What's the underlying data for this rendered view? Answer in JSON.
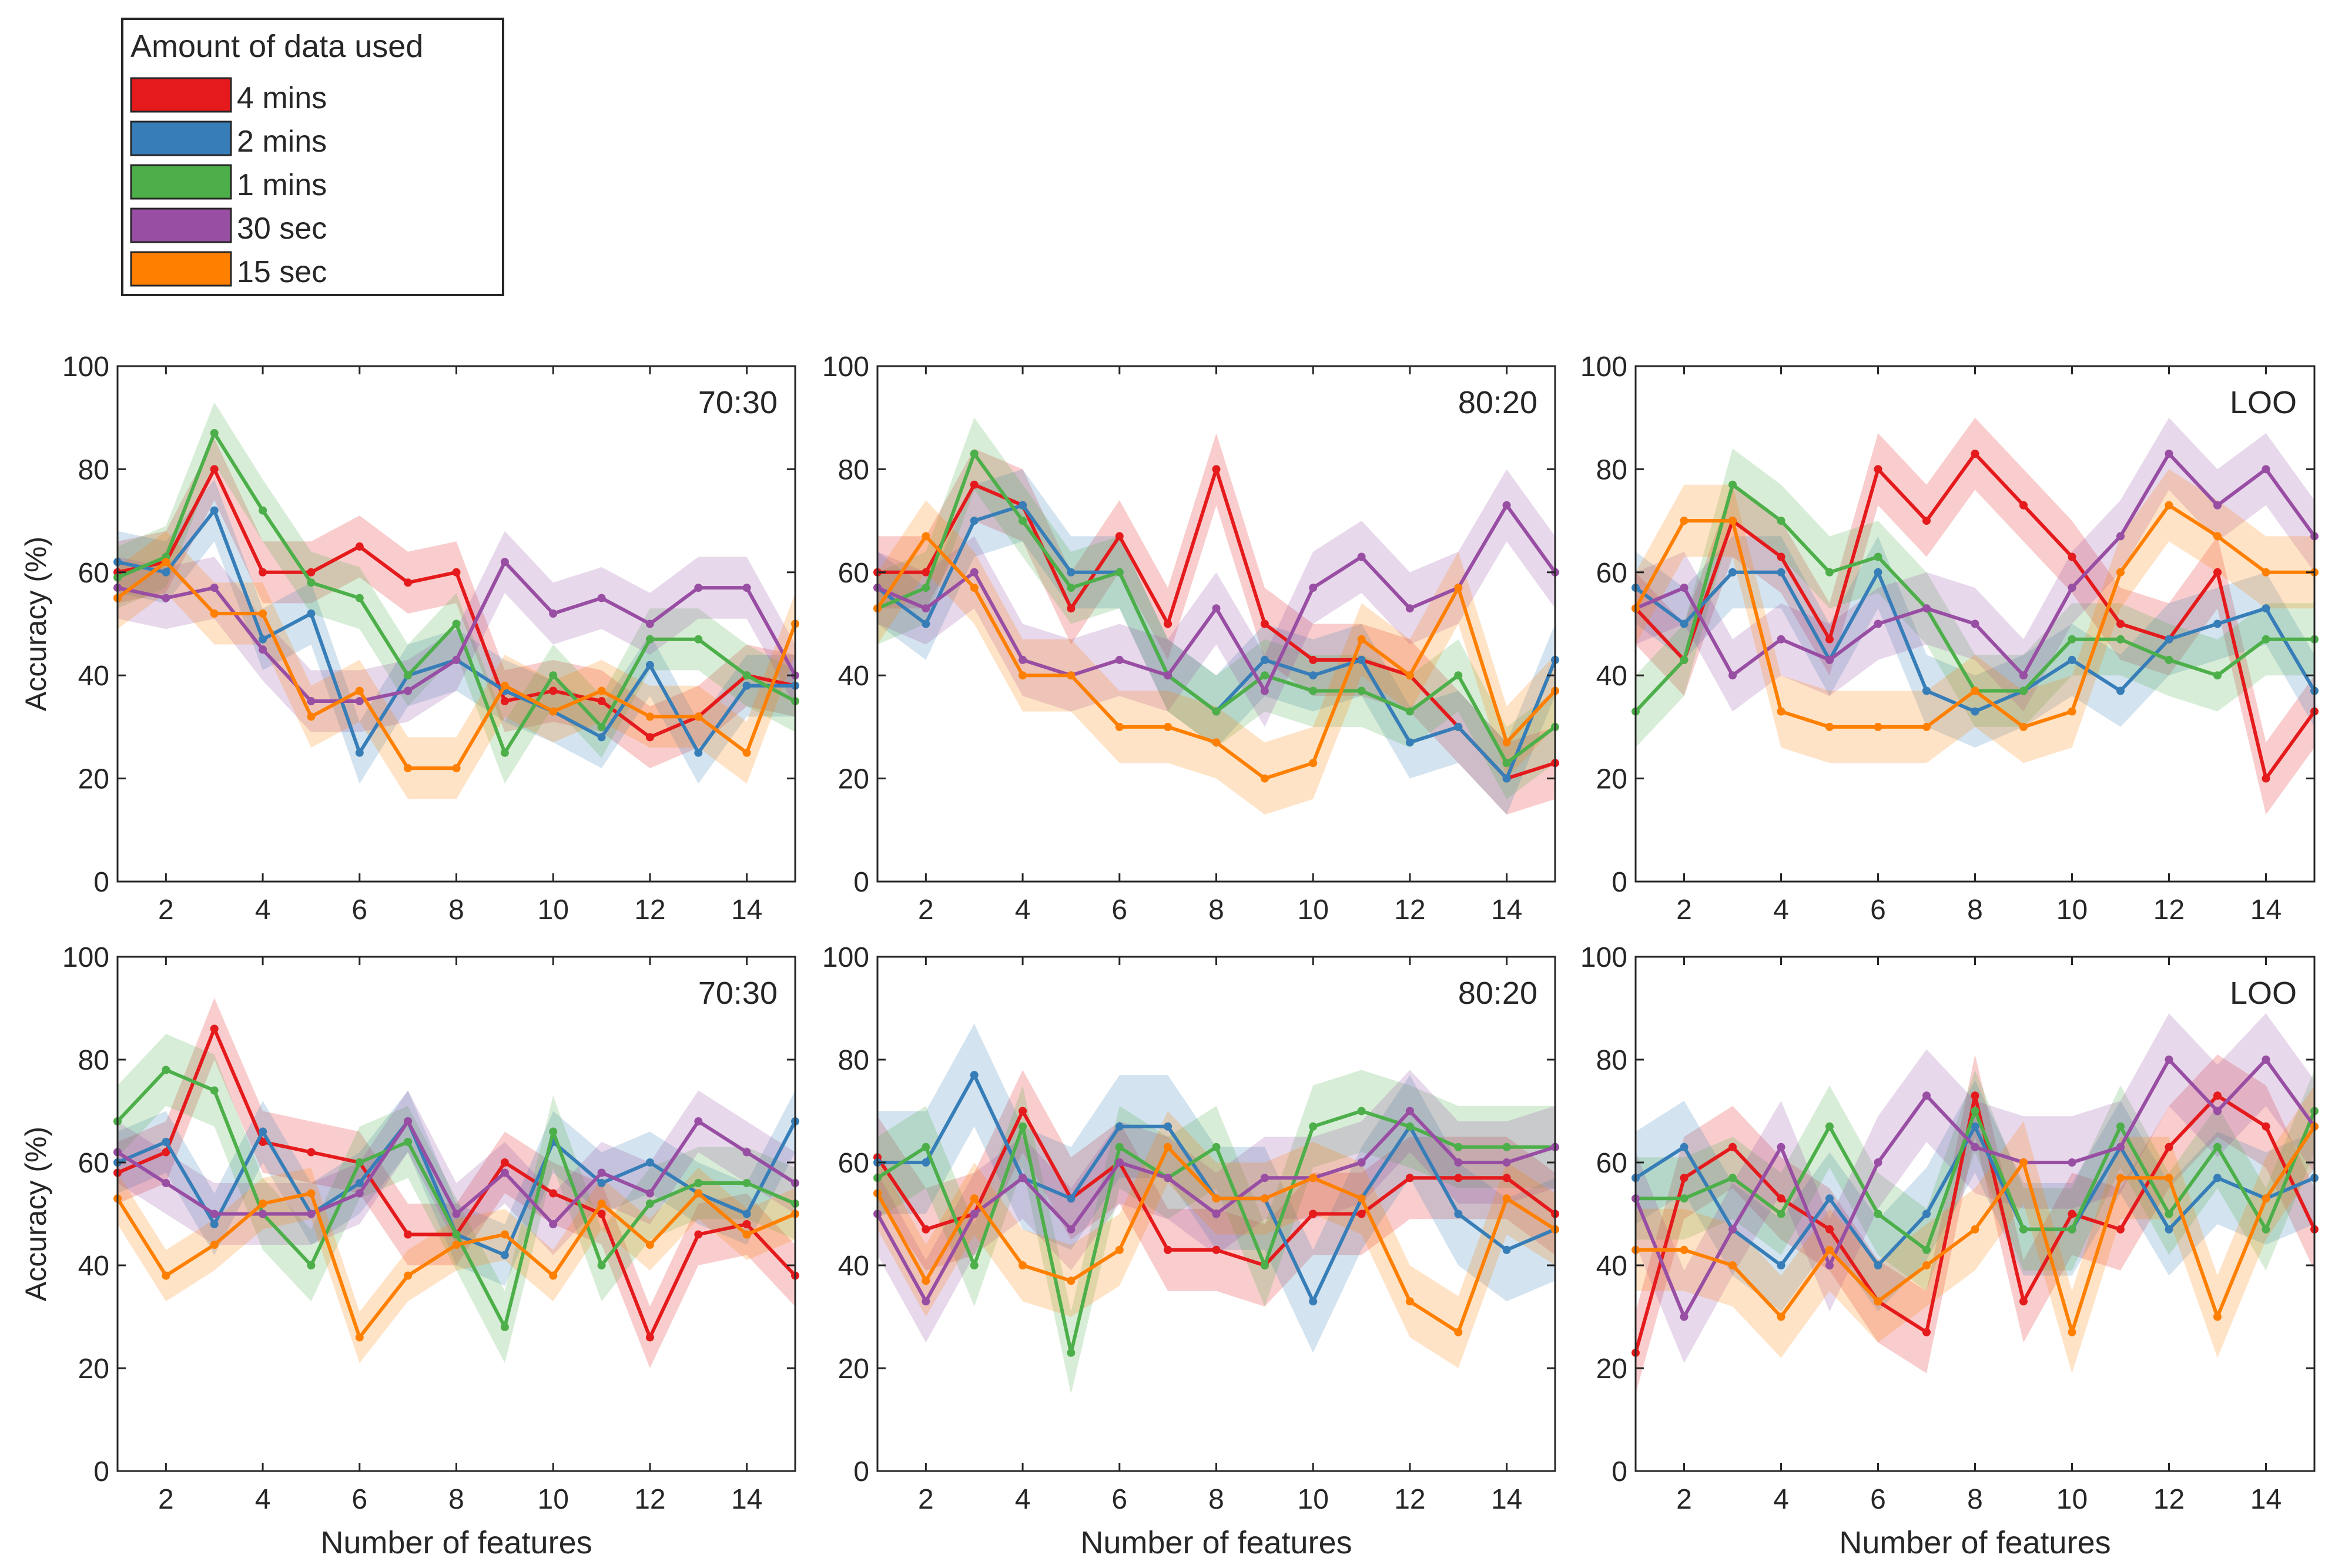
{
  "legend": {
    "title": "Amount of data used",
    "items": [
      {
        "label": "4 mins",
        "color": "#e41a1c"
      },
      {
        "label": "2 mins",
        "color": "#377eb8"
      },
      {
        "label": "1 mins",
        "color": "#4daf4a"
      },
      {
        "label": "30 sec",
        "color": "#984ea3"
      },
      {
        "label": "15 sec",
        "color": "#ff7f00"
      }
    ]
  },
  "chart_data": [
    {
      "type": "line",
      "title": "70:30",
      "xlabel": "",
      "ylabel": "Accuracy (%)",
      "xlim": [
        1,
        15
      ],
      "ylim": [
        0,
        100
      ],
      "xticks": [
        2,
        4,
        6,
        8,
        10,
        12,
        14
      ],
      "yticks": [
        0,
        20,
        40,
        60,
        80,
        100
      ],
      "x": [
        1,
        2,
        3,
        4,
        5,
        6,
        7,
        8,
        9,
        10,
        11,
        12,
        13,
        14,
        15
      ],
      "series": [
        {
          "name": "4 mins",
          "values": [
            60,
            62,
            80,
            60,
            60,
            65,
            58,
            60,
            35,
            37,
            35,
            28,
            32,
            40,
            38
          ],
          "band": 6
        },
        {
          "name": "2 mins",
          "values": [
            62,
            60,
            72,
            47,
            52,
            25,
            40,
            43,
            37,
            33,
            28,
            42,
            25,
            38,
            38
          ],
          "band": 6
        },
        {
          "name": "1 mins",
          "values": [
            59,
            63,
            87,
            72,
            58,
            55,
            40,
            50,
            25,
            40,
            30,
            47,
            47,
            40,
            35
          ],
          "band": 6
        },
        {
          "name": "30 sec",
          "values": [
            57,
            55,
            57,
            45,
            35,
            35,
            37,
            43,
            62,
            52,
            55,
            50,
            57,
            57,
            40
          ],
          "band": 6
        },
        {
          "name": "15 sec",
          "values": [
            55,
            62,
            52,
            52,
            32,
            37,
            22,
            22,
            38,
            33,
            37,
            32,
            32,
            25,
            50
          ],
          "band": 6
        }
      ]
    },
    {
      "type": "line",
      "title": "80:20",
      "xlabel": "",
      "ylabel": "",
      "xlim": [
        1,
        15
      ],
      "ylim": [
        0,
        100
      ],
      "xticks": [
        2,
        4,
        6,
        8,
        10,
        12,
        14
      ],
      "yticks": [
        0,
        20,
        40,
        60,
        80,
        100
      ],
      "x": [
        1,
        2,
        3,
        4,
        5,
        6,
        7,
        8,
        9,
        10,
        11,
        12,
        13,
        14,
        15
      ],
      "series": [
        {
          "name": "4 mins",
          "values": [
            60,
            60,
            77,
            73,
            53,
            67,
            50,
            80,
            50,
            43,
            43,
            40,
            30,
            20,
            23
          ],
          "band": 7
        },
        {
          "name": "2 mins",
          "values": [
            57,
            50,
            70,
            73,
            60,
            60,
            40,
            33,
            43,
            40,
            43,
            27,
            30,
            20,
            43
          ],
          "band": 7
        },
        {
          "name": "1 mins",
          "values": [
            53,
            57,
            83,
            70,
            57,
            60,
            40,
            33,
            40,
            37,
            37,
            33,
            40,
            23,
            30
          ],
          "band": 7
        },
        {
          "name": "30 sec",
          "values": [
            57,
            53,
            60,
            43,
            40,
            43,
            40,
            53,
            37,
            57,
            63,
            53,
            57,
            73,
            60
          ],
          "band": 7
        },
        {
          "name": "15 sec",
          "values": [
            53,
            67,
            57,
            40,
            40,
            30,
            30,
            27,
            20,
            23,
            47,
            40,
            57,
            27,
            37
          ],
          "band": 7
        }
      ]
    },
    {
      "type": "line",
      "title": "LOO",
      "xlabel": "",
      "ylabel": "",
      "xlim": [
        1,
        15
      ],
      "ylim": [
        0,
        100
      ],
      "xticks": [
        2,
        4,
        6,
        8,
        10,
        12,
        14
      ],
      "yticks": [
        0,
        20,
        40,
        60,
        80,
        100
      ],
      "x": [
        1,
        2,
        3,
        4,
        5,
        6,
        7,
        8,
        9,
        10,
        11,
        12,
        13,
        14,
        15
      ],
      "series": [
        {
          "name": "4 mins",
          "values": [
            53,
            43,
            70,
            63,
            47,
            80,
            70,
            83,
            73,
            63,
            50,
            47,
            60,
            20,
            33
          ],
          "band": 7
        },
        {
          "name": "2 mins",
          "values": [
            57,
            50,
            60,
            60,
            43,
            60,
            37,
            33,
            37,
            43,
            37,
            47,
            50,
            53,
            37
          ],
          "band": 7
        },
        {
          "name": "1 mins",
          "values": [
            33,
            43,
            77,
            70,
            60,
            63,
            53,
            37,
            37,
            47,
            47,
            43,
            40,
            47,
            47
          ],
          "band": 7
        },
        {
          "name": "30 sec",
          "values": [
            53,
            57,
            40,
            47,
            43,
            50,
            53,
            50,
            40,
            57,
            67,
            83,
            73,
            80,
            67
          ],
          "band": 7
        },
        {
          "name": "15 sec",
          "values": [
            53,
            70,
            70,
            33,
            30,
            30,
            30,
            37,
            30,
            33,
            60,
            73,
            67,
            60,
            60
          ],
          "band": 7
        }
      ]
    },
    {
      "type": "line",
      "title": "70:30",
      "xlabel": "Number of features",
      "ylabel": "Accuracy (%)",
      "xlim": [
        1,
        15
      ],
      "ylim": [
        0,
        100
      ],
      "xticks": [
        2,
        4,
        6,
        8,
        10,
        12,
        14
      ],
      "yticks": [
        0,
        20,
        40,
        60,
        80,
        100
      ],
      "x": [
        1,
        2,
        3,
        4,
        5,
        6,
        7,
        8,
        9,
        10,
        11,
        12,
        13,
        14,
        15
      ],
      "series": [
        {
          "name": "4 mins",
          "values": [
            58,
            62,
            86,
            64,
            62,
            60,
            46,
            46,
            60,
            54,
            50,
            26,
            46,
            48,
            38
          ],
          "band": 6
        },
        {
          "name": "2 mins",
          "values": [
            60,
            64,
            48,
            66,
            50,
            56,
            68,
            46,
            42,
            64,
            56,
            60,
            54,
            50,
            68
          ],
          "band": 6
        },
        {
          "name": "1 mins",
          "values": [
            68,
            78,
            74,
            50,
            40,
            60,
            64,
            46,
            28,
            66,
            40,
            52,
            56,
            56,
            52
          ],
          "band": 7
        },
        {
          "name": "30 sec",
          "values": [
            62,
            56,
            50,
            50,
            50,
            54,
            68,
            50,
            58,
            48,
            58,
            54,
            68,
            62,
            56
          ],
          "band": 6
        },
        {
          "name": "15 sec",
          "values": [
            53,
            38,
            44,
            52,
            54,
            26,
            38,
            44,
            46,
            38,
            52,
            44,
            54,
            46,
            50
          ],
          "band": 5
        }
      ]
    },
    {
      "type": "line",
      "title": "80:20",
      "xlabel": "Number of features",
      "ylabel": "",
      "xlim": [
        1,
        15
      ],
      "ylim": [
        0,
        100
      ],
      "xticks": [
        2,
        4,
        6,
        8,
        10,
        12,
        14
      ],
      "yticks": [
        0,
        20,
        40,
        60,
        80,
        100
      ],
      "x": [
        1,
        2,
        3,
        4,
        5,
        6,
        7,
        8,
        9,
        10,
        11,
        12,
        13,
        14,
        15
      ],
      "series": [
        {
          "name": "4 mins",
          "values": [
            61,
            47,
            50,
            70,
            53,
            60,
            43,
            43,
            40,
            50,
            50,
            57,
            57,
            57,
            50
          ],
          "band": 8
        },
        {
          "name": "2 mins",
          "values": [
            60,
            60,
            77,
            57,
            53,
            67,
            67,
            53,
            53,
            33,
            53,
            67,
            50,
            43,
            47
          ],
          "band": 10
        },
        {
          "name": "1 mins",
          "values": [
            57,
            63,
            40,
            67,
            23,
            63,
            57,
            63,
            40,
            67,
            70,
            67,
            63,
            63,
            63
          ],
          "band": 8
        },
        {
          "name": "30 sec",
          "values": [
            50,
            33,
            50,
            57,
            47,
            60,
            57,
            50,
            57,
            57,
            60,
            70,
            60,
            60,
            63
          ],
          "band": 8
        },
        {
          "name": "15 sec",
          "values": [
            54,
            37,
            53,
            40,
            37,
            43,
            63,
            53,
            53,
            57,
            53,
            33,
            27,
            53,
            47
          ],
          "band": 7
        }
      ]
    },
    {
      "type": "line",
      "title": "LOO",
      "xlabel": "Number of features",
      "ylabel": "",
      "xlim": [
        1,
        15
      ],
      "ylim": [
        0,
        100
      ],
      "xticks": [
        2,
        4,
        6,
        8,
        10,
        12,
        14
      ],
      "yticks": [
        0,
        20,
        40,
        60,
        80,
        100
      ],
      "x": [
        1,
        2,
        3,
        4,
        5,
        6,
        7,
        8,
        9,
        10,
        11,
        12,
        13,
        14,
        15
      ],
      "series": [
        {
          "name": "4 mins",
          "values": [
            23,
            57,
            63,
            53,
            47,
            33,
            27,
            73,
            33,
            50,
            47,
            63,
            73,
            67,
            47
          ],
          "band": 8
        },
        {
          "name": "2 mins",
          "values": [
            57,
            63,
            47,
            40,
            53,
            40,
            50,
            67,
            47,
            47,
            63,
            47,
            57,
            53,
            57
          ],
          "band": 9
        },
        {
          "name": "1 mins",
          "values": [
            53,
            53,
            57,
            50,
            67,
            50,
            43,
            70,
            47,
            47,
            67,
            50,
            63,
            47,
            70
          ],
          "band": 8
        },
        {
          "name": "30 sec",
          "values": [
            53,
            30,
            47,
            63,
            40,
            60,
            73,
            63,
            60,
            60,
            63,
            80,
            70,
            80,
            67
          ],
          "band": 9
        },
        {
          "name": "15 sec",
          "values": [
            43,
            43,
            40,
            30,
            43,
            33,
            40,
            47,
            60,
            27,
            57,
            57,
            30,
            53,
            67
          ],
          "band": 8
        }
      ]
    }
  ]
}
